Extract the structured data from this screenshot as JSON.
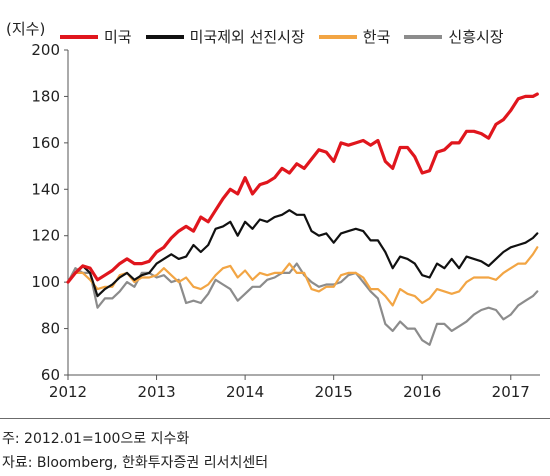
{
  "chart_data": {
    "type": "line",
    "unit_label": "(지수)",
    "ylim": [
      60,
      200
    ],
    "yticks": [
      "60",
      "80",
      "100",
      "120",
      "140",
      "160",
      "180",
      "200"
    ],
    "xlim": [
      2012.0,
      2017.33
    ],
    "xticks": [
      "2012",
      "2013",
      "2014",
      "2015",
      "2016",
      "2017"
    ],
    "grid": false,
    "legend_position": "top",
    "series": [
      {
        "name": "미국",
        "color": "#e0161d",
        "x": [
          2012.0,
          2012.0833,
          2012.1667,
          2012.25,
          2012.3333,
          2012.4167,
          2012.5,
          2012.5833,
          2012.6667,
          2012.75,
          2012.8333,
          2012.9167,
          2013.0,
          2013.0833,
          2013.1667,
          2013.25,
          2013.3333,
          2013.4167,
          2013.5,
          2013.5833,
          2013.6667,
          2013.75,
          2013.8333,
          2013.9167,
          2014.0,
          2014.0833,
          2014.1667,
          2014.25,
          2014.3333,
          2014.4167,
          2014.5,
          2014.5833,
          2014.6667,
          2014.75,
          2014.8333,
          2014.9167,
          2015.0,
          2015.0833,
          2015.1667,
          2015.25,
          2015.3333,
          2015.4167,
          2015.5,
          2015.5833,
          2015.6667,
          2015.75,
          2015.8333,
          2015.9167,
          2016.0,
          2016.0833,
          2016.1667,
          2016.25,
          2016.3333,
          2016.4167,
          2016.5,
          2016.5833,
          2016.6667,
          2016.75,
          2016.8333,
          2016.9167,
          2017.0,
          2017.0833,
          2017.1667,
          2017.25,
          2017.3
        ],
        "values": [
          100,
          104,
          107,
          106,
          101,
          103,
          105,
          108,
          110,
          108,
          108,
          109,
          113,
          115,
          119,
          122,
          124,
          122,
          128,
          126,
          131,
          136,
          140,
          138,
          145,
          138,
          142,
          143,
          145,
          149,
          147,
          151,
          149,
          153,
          157,
          156,
          152,
          160,
          159,
          160,
          161,
          159,
          161,
          152,
          149,
          158,
          158,
          154,
          147,
          148,
          156,
          157,
          160,
          160,
          165,
          165,
          164,
          162,
          168,
          170,
          174,
          179,
          180,
          180,
          181
        ]
      },
      {
        "name": "미국제외 선진시장",
        "color": "#111111",
        "x": [
          2012.0,
          2012.0833,
          2012.1667,
          2012.25,
          2012.3333,
          2012.4167,
          2012.5,
          2012.5833,
          2012.6667,
          2012.75,
          2012.8333,
          2012.9167,
          2013.0,
          2013.0833,
          2013.1667,
          2013.25,
          2013.3333,
          2013.4167,
          2013.5,
          2013.5833,
          2013.6667,
          2013.75,
          2013.8333,
          2013.9167,
          2014.0,
          2014.0833,
          2014.1667,
          2014.25,
          2014.3333,
          2014.4167,
          2014.5,
          2014.5833,
          2014.6667,
          2014.75,
          2014.8333,
          2014.9167,
          2015.0,
          2015.0833,
          2015.1667,
          2015.25,
          2015.3333,
          2015.4167,
          2015.5,
          2015.5833,
          2015.6667,
          2015.75,
          2015.8333,
          2015.9167,
          2016.0,
          2016.0833,
          2016.1667,
          2016.25,
          2016.3333,
          2016.4167,
          2016.5,
          2016.5833,
          2016.6667,
          2016.75,
          2016.8333,
          2016.9167,
          2017.0,
          2017.0833,
          2017.1667,
          2017.25,
          2017.3
        ],
        "values": [
          100,
          104,
          107,
          104,
          94,
          97,
          99,
          102,
          104,
          101,
          103,
          104,
          108,
          110,
          112,
          110,
          111,
          116,
          113,
          116,
          123,
          124,
          126,
          120,
          126,
          123,
          127,
          126,
          128,
          129,
          131,
          129,
          129,
          122,
          120,
          121,
          117,
          121,
          122,
          123,
          122,
          118,
          118,
          113,
          106,
          111,
          110,
          108,
          103,
          102,
          108,
          106,
          110,
          106,
          111,
          110,
          109,
          107,
          110,
          113,
          115,
          116,
          117,
          119,
          121
        ]
      },
      {
        "name": "한국",
        "color": "#f2a544",
        "x": [
          2012.0,
          2012.0833,
          2012.1667,
          2012.25,
          2012.3333,
          2012.4167,
          2012.5,
          2012.5833,
          2012.6667,
          2012.75,
          2012.8333,
          2012.9167,
          2013.0,
          2013.0833,
          2013.1667,
          2013.25,
          2013.3333,
          2013.4167,
          2013.5,
          2013.5833,
          2013.6667,
          2013.75,
          2013.8333,
          2013.9167,
          2014.0,
          2014.0833,
          2014.1667,
          2014.25,
          2014.3333,
          2014.4167,
          2014.5,
          2014.5833,
          2014.6667,
          2014.75,
          2014.8333,
          2014.9167,
          2015.0,
          2015.0833,
          2015.1667,
          2015.25,
          2015.3333,
          2015.4167,
          2015.5,
          2015.5833,
          2015.6667,
          2015.75,
          2015.8333,
          2015.9167,
          2016.0,
          2016.0833,
          2016.1667,
          2016.25,
          2016.3333,
          2016.4167,
          2016.5,
          2016.5833,
          2016.6667,
          2016.75,
          2016.8333,
          2016.9167,
          2017.0,
          2017.0833,
          2017.1667,
          2017.25,
          2017.3
        ],
        "values": [
          100,
          104,
          104,
          101,
          97,
          98,
          98,
          103,
          104,
          100,
          102,
          102,
          103,
          106,
          103,
          100,
          102,
          98,
          97,
          99,
          103,
          106,
          107,
          102,
          105,
          101,
          104,
          103,
          104,
          104,
          108,
          104,
          104,
          97,
          96,
          98,
          98,
          103,
          104,
          104,
          102,
          97,
          97,
          94,
          90,
          97,
          95,
          94,
          91,
          93,
          97,
          96,
          95,
          96,
          100,
          102,
          102,
          102,
          101,
          104,
          106,
          108,
          108,
          112,
          115
        ]
      },
      {
        "name": "신흥시장",
        "color": "#8c8c8c",
        "x": [
          2012.0,
          2012.0833,
          2012.1667,
          2012.25,
          2012.3333,
          2012.4167,
          2012.5,
          2012.5833,
          2012.6667,
          2012.75,
          2012.8333,
          2012.9167,
          2013.0,
          2013.0833,
          2013.1667,
          2013.25,
          2013.3333,
          2013.4167,
          2013.5,
          2013.5833,
          2013.6667,
          2013.75,
          2013.8333,
          2013.9167,
          2014.0,
          2014.0833,
          2014.1667,
          2014.25,
          2014.3333,
          2014.4167,
          2014.5,
          2014.5833,
          2014.6667,
          2014.75,
          2014.8333,
          2014.9167,
          2015.0,
          2015.0833,
          2015.1667,
          2015.25,
          2015.3333,
          2015.4167,
          2015.5,
          2015.5833,
          2015.6667,
          2015.75,
          2015.8333,
          2015.9167,
          2016.0,
          2016.0833,
          2016.1667,
          2016.25,
          2016.3333,
          2016.4167,
          2016.5,
          2016.5833,
          2016.6667,
          2016.75,
          2016.8333,
          2016.9167,
          2017.0,
          2017.0833,
          2017.1667,
          2017.25,
          2017.3
        ],
        "values": [
          100,
          106,
          104,
          104,
          89,
          93,
          93,
          96,
          100,
          98,
          104,
          104,
          102,
          103,
          100,
          101,
          91,
          92,
          91,
          95,
          101,
          99,
          97,
          92,
          95,
          98,
          98,
          101,
          102,
          104,
          104,
          108,
          103,
          100,
          98,
          99,
          99,
          100,
          103,
          104,
          100,
          96,
          93,
          82,
          79,
          83,
          80,
          80,
          75,
          73,
          82,
          82,
          79,
          81,
          83,
          86,
          88,
          89,
          88,
          84,
          86,
          90,
          92,
          94,
          96
        ]
      }
    ]
  },
  "notes": {
    "line1": "주: 2012.01=100으로 지수화",
    "line2": "자료: Bloomberg, 한화투자증권 리서치센터"
  }
}
